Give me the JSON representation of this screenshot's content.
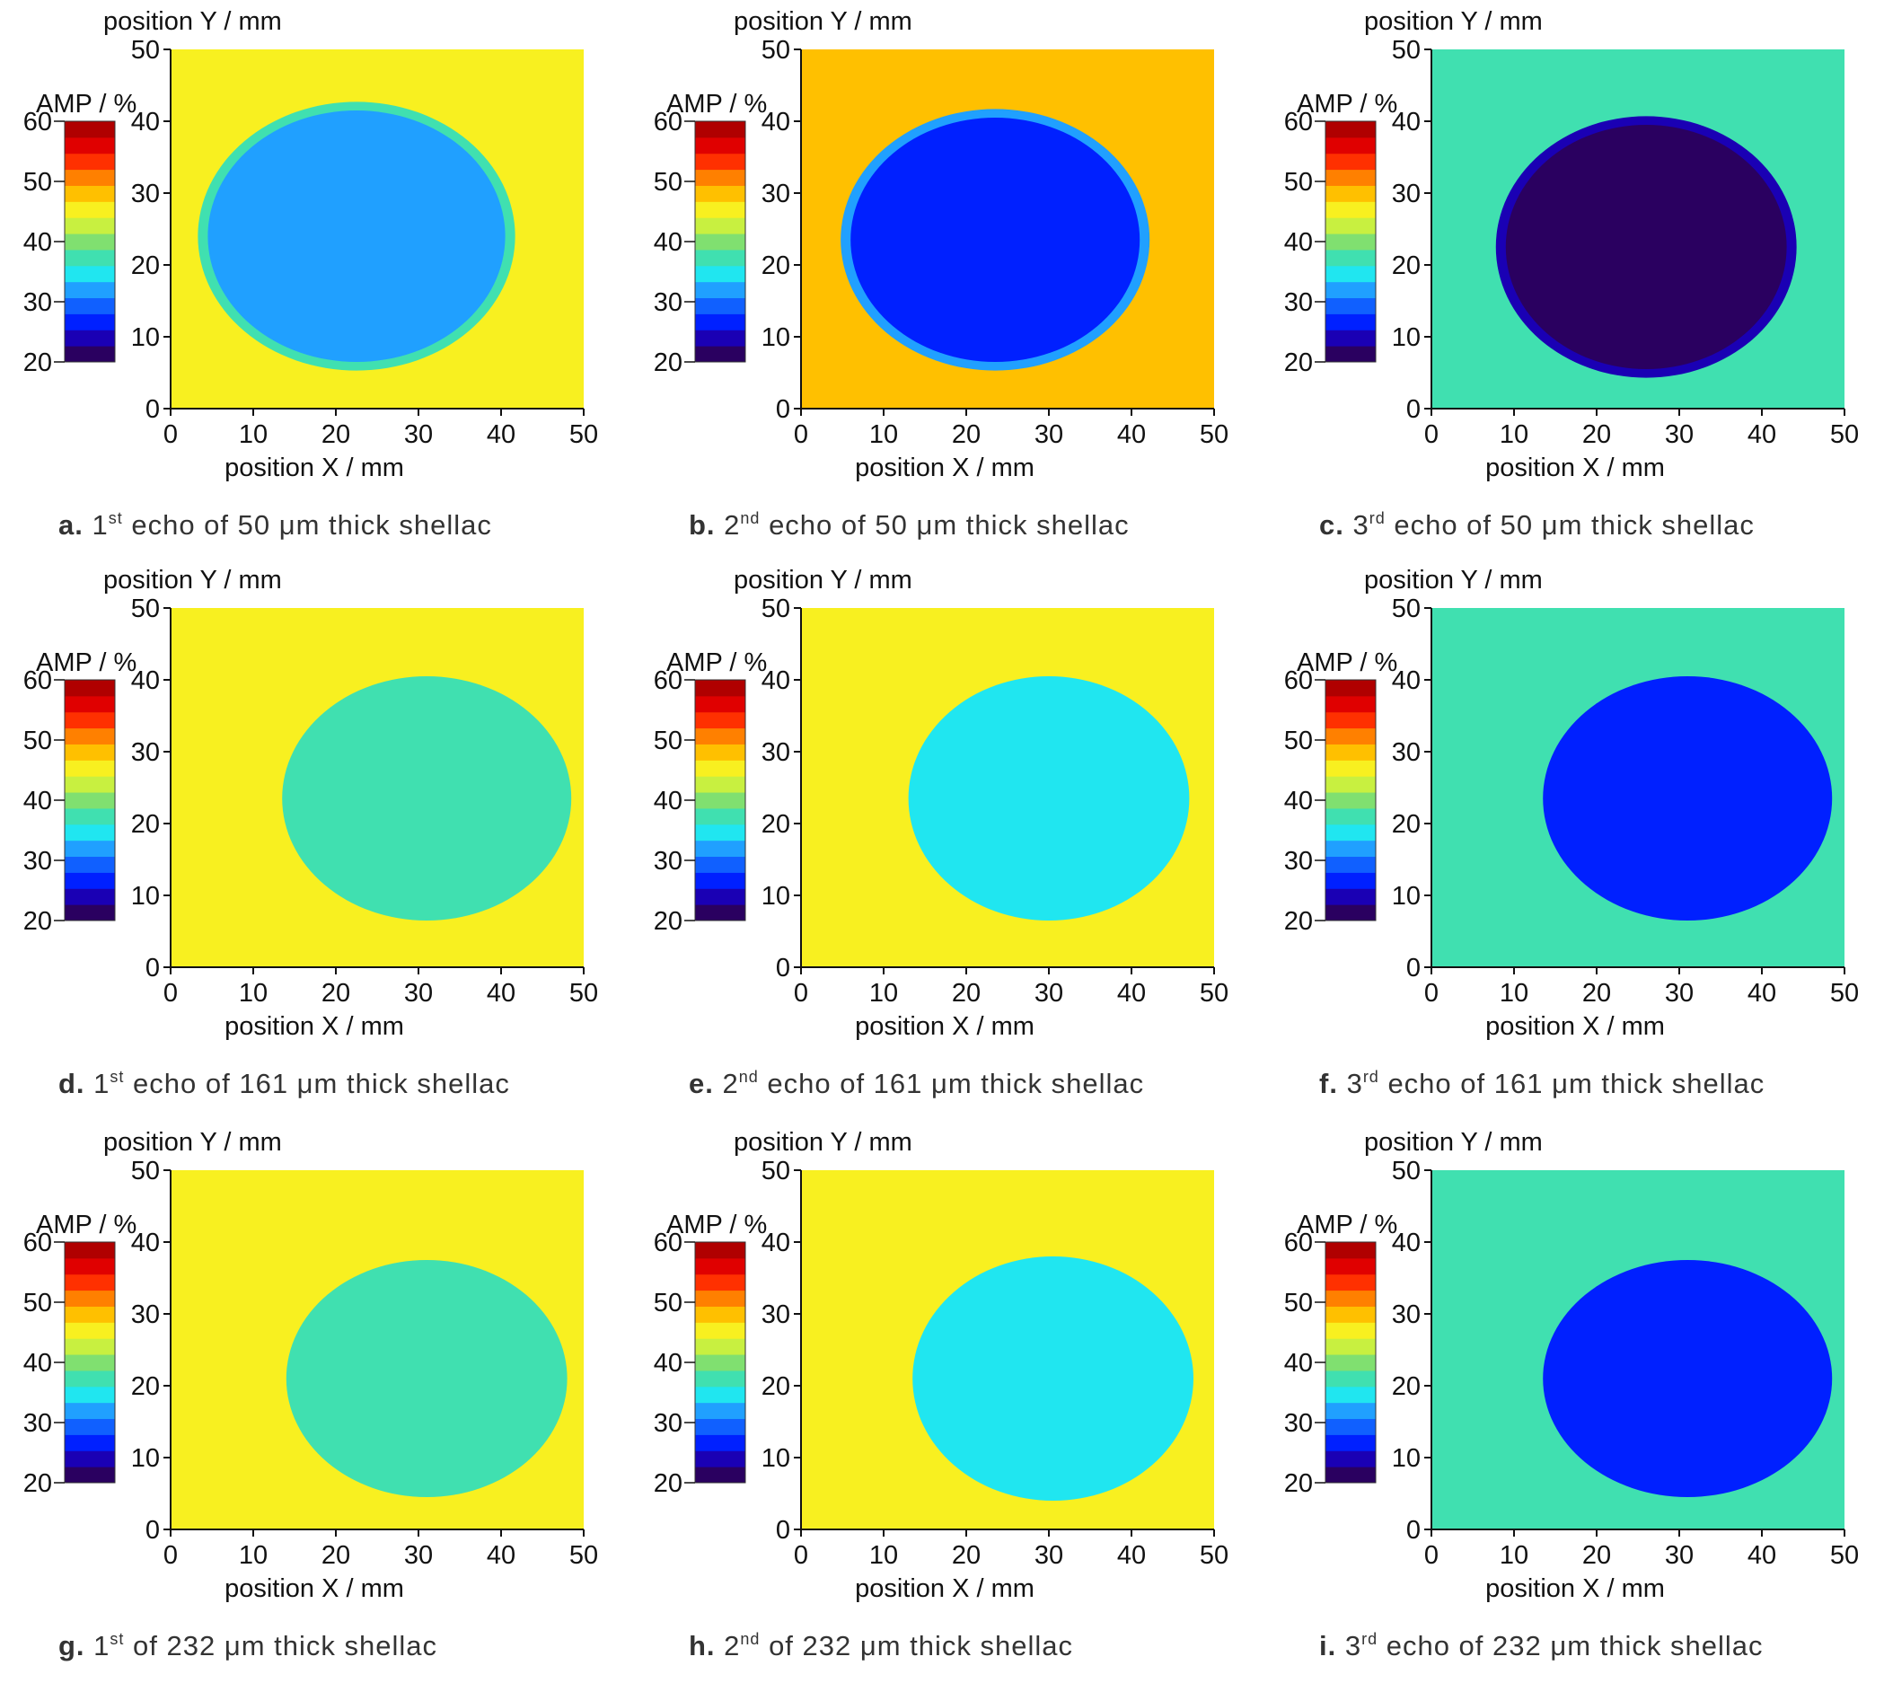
{
  "colors": {
    "background": "#ffffff",
    "axis": "#111111",
    "colormap": [
      "#2a0060",
      "#1a00b4",
      "#0020ff",
      "#1060ff",
      "#20a0ff",
      "#20e6f0",
      "#40e0b0",
      "#80e070",
      "#c8f040",
      "#f8f020",
      "#ffc000",
      "#ff8000",
      "#ff3000",
      "#e00000",
      "#b00000"
    ]
  },
  "chart_data": [
    {
      "panel": "a",
      "type": "heatmap",
      "caption": {
        "letter": "a.",
        "num": "1",
        "sup": "st",
        "text": "echo of 50 μm thick shellac"
      },
      "xlabel": "position X / mm",
      "ylabel": "position Y / mm",
      "xlim": [
        0,
        50
      ],
      "ylim": [
        0,
        50
      ],
      "xticks": [
        "0",
        "10",
        "20",
        "30",
        "40",
        "50"
      ],
      "yticks": [
        "0",
        "10",
        "20",
        "30",
        "40",
        "50"
      ],
      "colorbar": {
        "label": "AMP / %",
        "range": [
          20,
          60
        ],
        "ticks": [
          "20",
          "30",
          "40",
          "50",
          "60"
        ]
      },
      "background_level": 45,
      "disc": {
        "cx": 22.5,
        "cy": 24,
        "rx": 18,
        "ry": 17.5,
        "level": 33
      },
      "ring_level": 36
    },
    {
      "panel": "b",
      "type": "heatmap",
      "caption": {
        "letter": "b.",
        "num": "2",
        "sup": "nd",
        "text": "echo of 50 μm thick shellac"
      },
      "xlabel": "position X / mm",
      "ylabel": "position Y / mm",
      "xlim": [
        0,
        50
      ],
      "ylim": [
        0,
        50
      ],
      "xticks": [
        "0",
        "10",
        "20",
        "30",
        "40",
        "50"
      ],
      "yticks": [
        "0",
        "10",
        "20",
        "30",
        "40",
        "50"
      ],
      "colorbar": {
        "label": "AMP / %",
        "range": [
          20,
          60
        ],
        "ticks": [
          "20",
          "30",
          "40",
          "50",
          "60"
        ]
      },
      "background_level": 47,
      "disc": {
        "cx": 23.5,
        "cy": 23.5,
        "rx": 17.5,
        "ry": 17,
        "level": 26
      },
      "ring_level": 31
    },
    {
      "panel": "c",
      "type": "heatmap",
      "caption": {
        "letter": "c.",
        "num": "3",
        "sup": "rd",
        "text": "echo of 50 μm thick shellac"
      },
      "xlabel": "position X / mm",
      "ylabel": "position Y / mm",
      "xlim": [
        0,
        50
      ],
      "ylim": [
        0,
        50
      ],
      "xticks": [
        "0",
        "10",
        "20",
        "30",
        "40",
        "50"
      ],
      "yticks": [
        "0",
        "10",
        "20",
        "30",
        "40",
        "50"
      ],
      "colorbar": {
        "label": "AMP / %",
        "range": [
          20,
          60
        ],
        "ticks": [
          "20",
          "30",
          "40",
          "50",
          "60"
        ]
      },
      "background_level": 38,
      "disc": {
        "cx": 26,
        "cy": 22.5,
        "rx": 17,
        "ry": 17,
        "level": 20
      },
      "ring_level": 24
    },
    {
      "panel": "d",
      "type": "heatmap",
      "caption": {
        "letter": "d.",
        "num": "1",
        "sup": "st",
        "text": "echo of 161 μm thick shellac"
      },
      "xlabel": "position X / mm",
      "ylabel": "position Y / mm",
      "xlim": [
        0,
        50
      ],
      "ylim": [
        0,
        50
      ],
      "xticks": [
        "0",
        "10",
        "20",
        "30",
        "40",
        "50"
      ],
      "yticks": [
        "0",
        "10",
        "20",
        "30",
        "40",
        "50"
      ],
      "colorbar": {
        "label": "AMP / %",
        "range": [
          20,
          60
        ],
        "ticks": [
          "20",
          "30",
          "40",
          "50",
          "60"
        ]
      },
      "background_level": 45,
      "disc": {
        "cx": 31,
        "cy": 23.5,
        "rx": 17.5,
        "ry": 17,
        "level": 38
      }
    },
    {
      "panel": "e",
      "type": "heatmap",
      "caption": {
        "letter": "e.",
        "num": "2",
        "sup": "nd",
        "text": "echo of 161 μm thick shellac"
      },
      "xlabel": "position X / mm",
      "ylabel": "position Y / mm",
      "xlim": [
        0,
        50
      ],
      "ylim": [
        0,
        50
      ],
      "xticks": [
        "0",
        "10",
        "20",
        "30",
        "40",
        "50"
      ],
      "yticks": [
        "0",
        "10",
        "20",
        "30",
        "40",
        "50"
      ],
      "colorbar": {
        "label": "AMP / %",
        "range": [
          20,
          60
        ],
        "ticks": [
          "20",
          "30",
          "40",
          "50",
          "60"
        ]
      },
      "background_level": 46,
      "disc": {
        "cx": 30,
        "cy": 23.5,
        "rx": 17,
        "ry": 17,
        "level": 34
      }
    },
    {
      "panel": "f",
      "type": "heatmap",
      "caption": {
        "letter": "f.",
        "num": "3",
        "sup": "rd",
        "text": "echo of 161 μm thick shellac"
      },
      "xlabel": "position X / mm",
      "ylabel": "position Y / mm",
      "xlim": [
        0,
        50
      ],
      "ylim": [
        0,
        50
      ],
      "xticks": [
        "0",
        "10",
        "20",
        "30",
        "40",
        "50"
      ],
      "yticks": [
        "0",
        "10",
        "20",
        "30",
        "40",
        "50"
      ],
      "colorbar": {
        "label": "AMP / %",
        "range": [
          20,
          60
        ],
        "ticks": [
          "20",
          "30",
          "40",
          "50",
          "60"
        ]
      },
      "background_level": 38,
      "disc": {
        "cx": 31,
        "cy": 23.5,
        "rx": 17.5,
        "ry": 17,
        "level": 27
      }
    },
    {
      "panel": "g",
      "type": "heatmap",
      "caption": {
        "letter": "g.",
        "num": "1",
        "sup": "st",
        "text": "of 232 μm thick shellac"
      },
      "xlabel": "position X / mm",
      "ylabel": "position Y / mm",
      "xlim": [
        0,
        50
      ],
      "ylim": [
        0,
        50
      ],
      "xticks": [
        "0",
        "10",
        "20",
        "30",
        "40",
        "50"
      ],
      "yticks": [
        "0",
        "10",
        "20",
        "30",
        "40",
        "50"
      ],
      "colorbar": {
        "label": "AMP / %",
        "range": [
          20,
          60
        ],
        "ticks": [
          "20",
          "30",
          "40",
          "50",
          "60"
        ]
      },
      "background_level": 45,
      "disc": {
        "cx": 31,
        "cy": 21,
        "rx": 17,
        "ry": 16.5,
        "level": 38
      }
    },
    {
      "panel": "h",
      "type": "heatmap",
      "caption": {
        "letter": "h.",
        "num": "2",
        "sup": "nd",
        "text": "of 232 μm thick shellac"
      },
      "xlabel": "position X / mm",
      "ylabel": "position Y / mm",
      "xlim": [
        0,
        50
      ],
      "ylim": [
        0,
        50
      ],
      "xticks": [
        "0",
        "10",
        "20",
        "30",
        "40",
        "50"
      ],
      "yticks": [
        "0",
        "10",
        "20",
        "30",
        "40",
        "50"
      ],
      "colorbar": {
        "label": "AMP / %",
        "range": [
          20,
          60
        ],
        "ticks": [
          "20",
          "30",
          "40",
          "50",
          "60"
        ]
      },
      "background_level": 46,
      "disc": {
        "cx": 30.5,
        "cy": 21,
        "rx": 17,
        "ry": 17,
        "level": 34
      }
    },
    {
      "panel": "i",
      "type": "heatmap",
      "caption": {
        "letter": "i.",
        "num": "3",
        "sup": "rd",
        "text": "echo of 232 μm thick shellac"
      },
      "xlabel": "position X / mm",
      "ylabel": "position Y / mm",
      "xlim": [
        0,
        50
      ],
      "ylim": [
        0,
        50
      ],
      "xticks": [
        "0",
        "10",
        "20",
        "30",
        "40",
        "50"
      ],
      "yticks": [
        "0",
        "10",
        "20",
        "30",
        "40",
        "50"
      ],
      "colorbar": {
        "label": "AMP / %",
        "range": [
          20,
          60
        ],
        "ticks": [
          "20",
          "30",
          "40",
          "50",
          "60"
        ]
      },
      "background_level": 38,
      "disc": {
        "cx": 31,
        "cy": 21,
        "rx": 17.5,
        "ry": 16.5,
        "level": 27
      }
    }
  ]
}
